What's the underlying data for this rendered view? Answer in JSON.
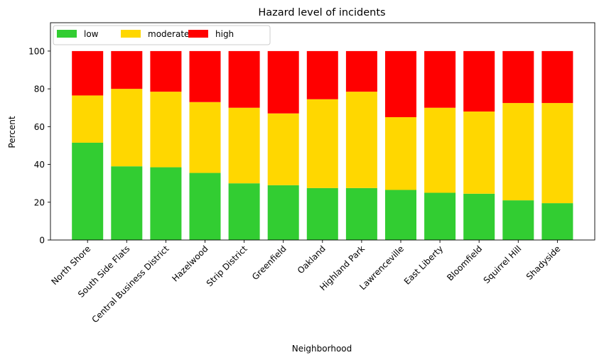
{
  "chart_data": {
    "type": "bar",
    "stacked": true,
    "title": "Hazard level of incidents",
    "xlabel": "Neighborhood",
    "ylabel": "Percent",
    "ylim": [
      0,
      115
    ],
    "yticks": [
      0,
      20,
      40,
      60,
      80,
      100
    ],
    "legend_position": "top-left",
    "grid": false,
    "categories": [
      "North Shore",
      "South Side Flats",
      "Central Business District",
      "Hazelwood",
      "Strip District",
      "Greenfield",
      "Oakland",
      "Highland Park",
      "Lawrenceville",
      "East Liberty",
      "Bloomfield",
      "Squirrel Hill",
      "Shadyside"
    ],
    "series": [
      {
        "name": "low",
        "color": "#32cd32",
        "values": [
          51.5,
          39,
          38.5,
          35.5,
          30,
          29,
          27.5,
          27.5,
          26.5,
          25,
          24.5,
          21,
          19.5
        ]
      },
      {
        "name": "moderate",
        "color": "#ffd700",
        "values": [
          25,
          41,
          40,
          37.5,
          40,
          38,
          47,
          51,
          38.5,
          45,
          43.5,
          51.5,
          53
        ]
      },
      {
        "name": "high",
        "color": "#ff0000",
        "values": [
          23.5,
          20,
          21.5,
          27,
          30,
          33,
          25.5,
          21.5,
          35,
          30,
          32,
          27.5,
          27.5
        ]
      }
    ]
  }
}
